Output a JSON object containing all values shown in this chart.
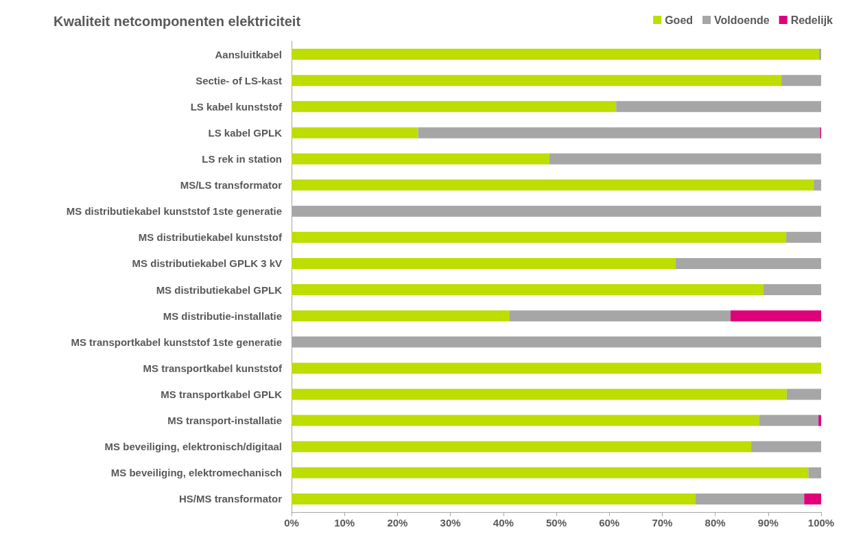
{
  "chart_data": {
    "type": "bar",
    "orientation": "horizontal",
    "stacked": true,
    "title": "Kwaliteit netcomponenten elektriciteit",
    "categories": [
      "Aansluitkabel",
      "Sectie- of LS-kast",
      "LS kabel kunststof",
      "LS kabel GPLK",
      "LS rek in station",
      "MS/LS transformator",
      "MS distributiekabel kunststof 1ste generatie",
      "MS distributiekabel kunststof",
      "MS distributiekabel GPLK 3 kV",
      "MS distributiekabel GPLK",
      "MS distributie-installatie",
      "MS transportkabel kunststof 1ste generatie",
      "MS transportkabel kunststof",
      "MS transportkabel GPLK",
      "MS transport-installatie",
      "MS beveiliging, elektronisch/digitaal",
      "MS beveiliging, elektromechanisch",
      "HS/MS transformator"
    ],
    "series": [
      {
        "name": "Goed",
        "color": "#bedd00",
        "values": [
          99.6,
          92.5,
          61.3,
          23.9,
          48.7,
          98.6,
          0,
          93.4,
          72.5,
          89.1,
          41.1,
          0,
          100,
          93.5,
          88.3,
          86.8,
          97.6,
          76.3
        ]
      },
      {
        "name": "Voldoende",
        "color": "#a6a6a6",
        "values": [
          0.4,
          7.5,
          38.7,
          75.9,
          51.3,
          1.4,
          100,
          6.6,
          27.5,
          10.9,
          41.8,
          100,
          0,
          6.5,
          11.2,
          13.2,
          2.4,
          20.5
        ]
      },
      {
        "name": "Redelijk",
        "color": "#e0007a",
        "values": [
          0,
          0,
          0,
          0.2,
          0,
          0,
          0,
          0,
          0,
          0,
          17.1,
          0,
          0,
          0,
          0.5,
          0,
          0,
          3.2
        ]
      }
    ],
    "xlim": [
      0,
      100
    ],
    "xticks": [
      {
        "value": 0,
        "label": "0%"
      },
      {
        "value": 10,
        "label": "10%"
      },
      {
        "value": 20,
        "label": "20%"
      },
      {
        "value": 30,
        "label": "30%"
      },
      {
        "value": 40,
        "label": "40%"
      },
      {
        "value": 50,
        "label": "50%"
      },
      {
        "value": 60,
        "label": "60%"
      },
      {
        "value": 70,
        "label": "70%"
      },
      {
        "value": 80,
        "label": "80%"
      },
      {
        "value": 90,
        "label": "90%"
      },
      {
        "value": 100,
        "label": "100%"
      }
    ],
    "legend": "top right",
    "grid": false
  }
}
